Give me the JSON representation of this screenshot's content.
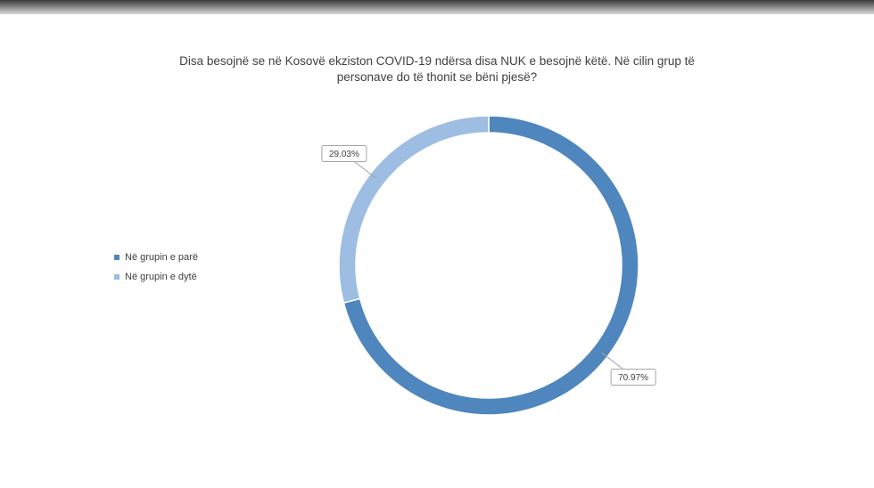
{
  "chart_data": {
    "type": "donut",
    "title": "Disa besojnë se në Kosovë ekziston COVID-19 ndërsa disa NUK e besojnë këtë. Në cilin grup të personave do të thonit se bëni pjesë?",
    "categories": [
      "Në grupin e parë",
      "Në grupin e dytë"
    ],
    "values": [
      70.97,
      29.03
    ],
    "value_labels": [
      "70.97%",
      "29.03%"
    ],
    "colors": [
      "#4f86bd",
      "#9dbde2"
    ],
    "legend": "left"
  }
}
